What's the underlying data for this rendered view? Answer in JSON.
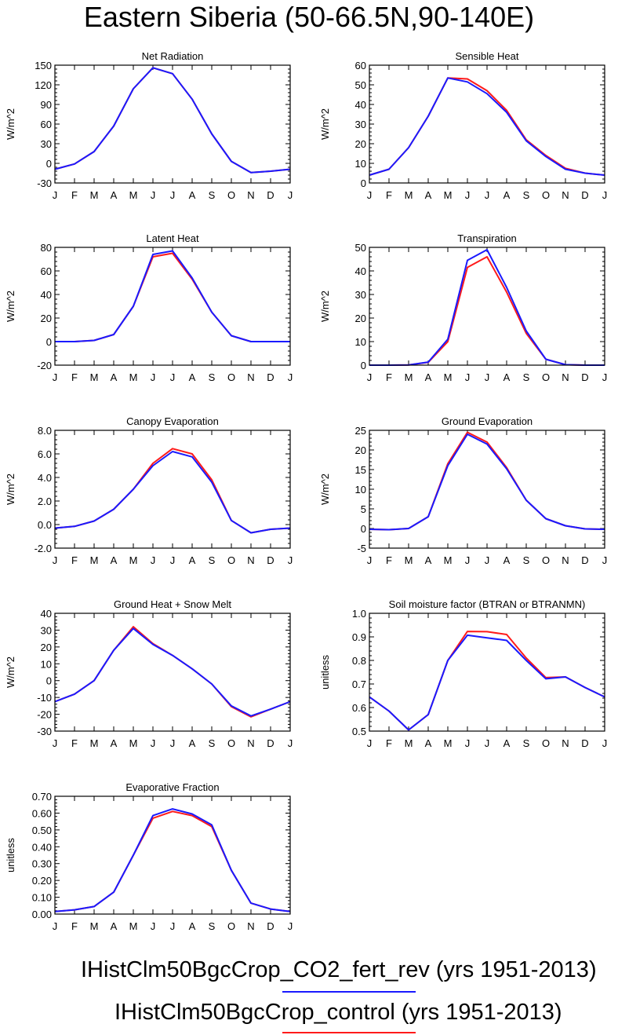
{
  "page": {
    "title": "Eastern Siberia (50-66.5N,90-140E)"
  },
  "legend": [
    {
      "label": "IHistClm50BgcCrop_CO2_fert_rev (yrs 1951-2013)",
      "color": "#1a1aff"
    },
    {
      "label": "IHistClm50BgcCrop_control (yrs 1951-2013)",
      "color": "#ff1a1a"
    }
  ],
  "colors": {
    "fert_rev": "#1a1aff",
    "control": "#ff1a1a",
    "axis": "#000000"
  },
  "chart_data": [
    {
      "type": "line",
      "title": "Net Radiation",
      "ylabel": "W/m^2",
      "xlabel": "",
      "categories": [
        "J",
        "F",
        "M",
        "A",
        "M",
        "J",
        "J",
        "A",
        "S",
        "O",
        "N",
        "D",
        "J"
      ],
      "ylim": [
        -30,
        150
      ],
      "yticks": [
        -30,
        0,
        30,
        60,
        90,
        120,
        150
      ],
      "ytick_labels": [
        "-30",
        "0",
        "30",
        "60",
        "90",
        "120",
        "150"
      ],
      "series": [
        {
          "key": "control",
          "color": "#ff1a1a",
          "values": [
            -9,
            -1,
            18,
            57,
            114,
            146,
            137,
            98,
            45,
            3,
            -14,
            -12,
            -9
          ]
        },
        {
          "key": "fert_rev",
          "color": "#1a1aff",
          "values": [
            -9,
            -1,
            18,
            57,
            114,
            146,
            137,
            98,
            45,
            3,
            -14,
            -12,
            -9
          ]
        }
      ]
    },
    {
      "type": "line",
      "title": "Sensible Heat",
      "ylabel": "W/m^2",
      "xlabel": "",
      "categories": [
        "J",
        "F",
        "M",
        "A",
        "M",
        "J",
        "J",
        "A",
        "S",
        "O",
        "N",
        "D",
        "J"
      ],
      "ylim": [
        0,
        60
      ],
      "yticks": [
        0,
        10,
        20,
        30,
        40,
        50,
        60
      ],
      "ytick_labels": [
        "0",
        "10",
        "20",
        "30",
        "40",
        "50",
        "60"
      ],
      "series": [
        {
          "key": "control",
          "color": "#ff1a1a",
          "values": [
            4,
            7,
            18,
            34,
            53.5,
            53,
            47,
            37,
            22,
            14,
            7.5,
            5,
            4
          ]
        },
        {
          "key": "fert_rev",
          "color": "#1a1aff",
          "values": [
            4,
            7,
            18,
            34,
            53.5,
            51.5,
            45.5,
            36,
            21.5,
            13.5,
            7,
            5,
            4
          ]
        }
      ]
    },
    {
      "type": "line",
      "title": "Latent Heat",
      "ylabel": "W/m^2",
      "xlabel": "",
      "categories": [
        "J",
        "F",
        "M",
        "A",
        "M",
        "J",
        "J",
        "A",
        "S",
        "O",
        "N",
        "D",
        "J"
      ],
      "ylim": [
        -20,
        80
      ],
      "yticks": [
        -20,
        0,
        20,
        40,
        60,
        80
      ],
      "ytick_labels": [
        "-20",
        "0",
        "20",
        "40",
        "60",
        "80"
      ],
      "series": [
        {
          "key": "control",
          "color": "#ff1a1a",
          "values": [
            0,
            0,
            1,
            6,
            30,
            72,
            75,
            53,
            25,
            5,
            0,
            0,
            0
          ]
        },
        {
          "key": "fert_rev",
          "color": "#1a1aff",
          "values": [
            0,
            0,
            1,
            6,
            30,
            74,
            77,
            54,
            25,
            5,
            0,
            0,
            0
          ]
        }
      ]
    },
    {
      "type": "line",
      "title": "Transpiration",
      "ylabel": "W/m^2",
      "xlabel": "",
      "categories": [
        "J",
        "F",
        "M",
        "A",
        "M",
        "J",
        "J",
        "A",
        "S",
        "O",
        "N",
        "D",
        "J"
      ],
      "ylim": [
        0,
        50
      ],
      "yticks": [
        0,
        10,
        20,
        30,
        40,
        50
      ],
      "ytick_labels": [
        "0",
        "10",
        "20",
        "30",
        "40",
        "50"
      ],
      "series": [
        {
          "key": "control",
          "color": "#ff1a1a",
          "values": [
            0,
            0,
            0.1,
            1.2,
            10,
            41.5,
            46,
            31,
            13.5,
            2.5,
            0.2,
            0,
            0
          ]
        },
        {
          "key": "fert_rev",
          "color": "#1a1aff",
          "values": [
            0,
            0,
            0.1,
            1.3,
            11,
            44.5,
            49,
            33,
            14.5,
            2.5,
            0.2,
            0,
            0
          ]
        }
      ]
    },
    {
      "type": "line",
      "title": "Canopy Evaporation",
      "ylabel": "W/m^2",
      "xlabel": "",
      "categories": [
        "J",
        "F",
        "M",
        "A",
        "M",
        "J",
        "J",
        "A",
        "S",
        "O",
        "N",
        "D",
        "J"
      ],
      "ylim": [
        -2,
        8
      ],
      "yticks": [
        -2,
        0,
        2,
        4,
        6,
        8
      ],
      "ytick_labels": [
        "-2.0",
        "0.0",
        "2.0",
        "4.0",
        "6.0",
        "8.0"
      ],
      "series": [
        {
          "key": "control",
          "color": "#ff1a1a",
          "values": [
            -0.3,
            -0.15,
            0.3,
            1.3,
            3.0,
            5.2,
            6.45,
            6.0,
            3.8,
            0.35,
            -0.7,
            -0.4,
            -0.3
          ]
        },
        {
          "key": "fert_rev",
          "color": "#1a1aff",
          "values": [
            -0.3,
            -0.15,
            0.3,
            1.3,
            3.0,
            5.0,
            6.2,
            5.75,
            3.6,
            0.35,
            -0.7,
            -0.4,
            -0.3
          ]
        }
      ]
    },
    {
      "type": "line",
      "title": "Ground Evaporation",
      "ylabel": "W/m^2",
      "xlabel": "",
      "categories": [
        "J",
        "F",
        "M",
        "A",
        "M",
        "J",
        "J",
        "A",
        "S",
        "O",
        "N",
        "D",
        "J"
      ],
      "ylim": [
        -5,
        25
      ],
      "yticks": [
        -5,
        0,
        5,
        10,
        15,
        20,
        25
      ],
      "ytick_labels": [
        "-5",
        "0",
        "5",
        "10",
        "15",
        "20",
        "25"
      ],
      "series": [
        {
          "key": "control",
          "color": "#ff1a1a",
          "values": [
            -0.2,
            -0.3,
            0,
            3,
            16.5,
            24.5,
            22,
            15.5,
            7.2,
            2.5,
            0.7,
            -0.1,
            -0.2
          ]
        },
        {
          "key": "fert_rev",
          "color": "#1a1aff",
          "values": [
            -0.2,
            -0.3,
            0,
            3,
            16,
            24,
            21.5,
            15.2,
            7.2,
            2.5,
            0.7,
            -0.1,
            -0.2
          ]
        }
      ]
    },
    {
      "type": "line",
      "title": "Ground Heat + Snow Melt",
      "ylabel": "W/m^2",
      "xlabel": "",
      "categories": [
        "J",
        "F",
        "M",
        "A",
        "M",
        "J",
        "J",
        "A",
        "S",
        "O",
        "N",
        "D",
        "J"
      ],
      "ylim": [
        -30,
        40
      ],
      "yticks": [
        -30,
        -20,
        -10,
        0,
        10,
        20,
        30,
        40
      ],
      "ytick_labels": [
        "-30",
        "-20",
        "-10",
        "0",
        "10",
        "20",
        "30",
        "40"
      ],
      "series": [
        {
          "key": "control",
          "color": "#ff1a1a",
          "values": [
            -12.5,
            -8,
            0,
            18,
            32,
            22,
            15,
            7,
            -2,
            -15.5,
            -21.5,
            -17,
            -12.5
          ]
        },
        {
          "key": "fert_rev",
          "color": "#1a1aff",
          "values": [
            -12.5,
            -8,
            0,
            18,
            31,
            21.5,
            15,
            7,
            -2,
            -15,
            -21,
            -17,
            -12.5
          ]
        }
      ]
    },
    {
      "type": "line",
      "title": "Soil moisture factor (BTRAN or BTRANMN)",
      "ylabel": "unitless",
      "xlabel": "",
      "categories": [
        "J",
        "F",
        "M",
        "A",
        "M",
        "J",
        "J",
        "A",
        "S",
        "O",
        "N",
        "D",
        "J"
      ],
      "ylim": [
        0.5,
        1.0
      ],
      "yticks": [
        0.5,
        0.6,
        0.7,
        0.8,
        0.9,
        1.0
      ],
      "ytick_labels": [
        "0.5",
        "0.6",
        "0.7",
        "0.8",
        "0.9",
        "1.0"
      ],
      "series": [
        {
          "key": "control",
          "color": "#ff1a1a",
          "values": [
            0.645,
            0.585,
            0.505,
            0.57,
            0.8,
            0.923,
            0.922,
            0.91,
            0.81,
            0.727,
            0.73,
            0.685,
            0.645
          ]
        },
        {
          "key": "fert_rev",
          "color": "#1a1aff",
          "values": [
            0.645,
            0.585,
            0.505,
            0.57,
            0.8,
            0.907,
            0.896,
            0.885,
            0.8,
            0.722,
            0.73,
            0.685,
            0.645
          ]
        }
      ]
    },
    {
      "type": "line",
      "title": "Evaporative Fraction",
      "ylabel": "unitless",
      "xlabel": "",
      "categories": [
        "J",
        "F",
        "M",
        "A",
        "M",
        "J",
        "J",
        "A",
        "S",
        "O",
        "N",
        "D",
        "J"
      ],
      "ylim": [
        0,
        0.7
      ],
      "yticks": [
        0,
        0.1,
        0.2,
        0.3,
        0.4,
        0.5,
        0.6,
        0.7
      ],
      "ytick_labels": [
        "0.00",
        "0.10",
        "0.20",
        "0.30",
        "0.40",
        "0.50",
        "0.60",
        "0.70"
      ],
      "series": [
        {
          "key": "control",
          "color": "#ff1a1a",
          "values": [
            0.015,
            0.025,
            0.045,
            0.13,
            0.35,
            0.57,
            0.61,
            0.585,
            0.52,
            0.26,
            0.065,
            0.03,
            0.015
          ]
        },
        {
          "key": "fert_rev",
          "color": "#1a1aff",
          "values": [
            0.015,
            0.025,
            0.045,
            0.13,
            0.35,
            0.585,
            0.625,
            0.595,
            0.53,
            0.26,
            0.065,
            0.03,
            0.015
          ]
        }
      ]
    }
  ]
}
